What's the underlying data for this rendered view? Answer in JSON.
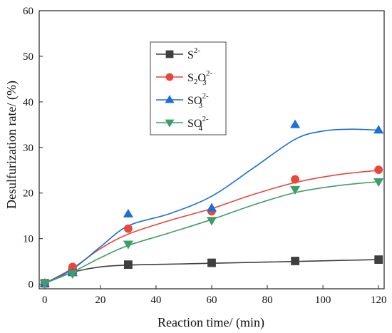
{
  "chart_data": {
    "type": "line",
    "x": [
      0,
      10,
      30,
      60,
      90,
      120
    ],
    "series": [
      {
        "name": "S2-",
        "label_base": "S",
        "label_sub": "",
        "label_sup": "2-",
        "marker": "square",
        "color": "#3f3f3f",
        "values": [
          0.2,
          2.9,
          4.3,
          4.7,
          5.1,
          5.4
        ],
        "curve": [
          [
            0,
            0.2
          ],
          [
            10,
            2.6
          ],
          [
            20,
            3.8
          ],
          [
            30,
            4.2
          ],
          [
            45,
            4.4
          ],
          [
            60,
            4.6
          ],
          [
            75,
            4.8
          ],
          [
            90,
            5.0
          ],
          [
            105,
            5.2
          ],
          [
            120,
            5.4
          ]
        ]
      },
      {
        "name": "S2O32-",
        "label_base": "S",
        "label_sub": "2",
        "label_mid": "O",
        "label_sub2": "3",
        "label_sup": "2-",
        "marker": "circle",
        "color": "#e8473b",
        "values": [
          0.2,
          3.8,
          12.2,
          16.0,
          23.0,
          25.1
        ],
        "curve": [
          [
            0,
            0.2
          ],
          [
            10,
            3.5
          ],
          [
            20,
            7.8
          ],
          [
            30,
            11.0
          ],
          [
            45,
            14.0
          ],
          [
            60,
            16.6
          ],
          [
            75,
            19.7
          ],
          [
            90,
            22.3
          ],
          [
            105,
            24.0
          ],
          [
            120,
            25.0
          ]
        ]
      },
      {
        "name": "SO32-",
        "label_base": "SO",
        "label_sub": "3",
        "label_sup": "2-",
        "marker": "triangle-up",
        "color": "#1b6fd6",
        "values": [
          0.2,
          2.5,
          15.4,
          16.7,
          35.0,
          33.8
        ],
        "curve": [
          [
            0,
            0.2
          ],
          [
            10,
            3.3
          ],
          [
            20,
            8.2
          ],
          [
            30,
            12.8
          ],
          [
            45,
            15.5
          ],
          [
            60,
            19.3
          ],
          [
            75,
            25.5
          ],
          [
            90,
            31.8
          ],
          [
            100,
            33.6
          ],
          [
            110,
            34.0
          ],
          [
            120,
            33.8
          ]
        ]
      },
      {
        "name": "SO42-",
        "label_base": "SO",
        "label_sub": "4",
        "label_sup": "2-",
        "marker": "triangle-down",
        "color": "#3e9e6a",
        "values": [
          0.2,
          2.3,
          8.8,
          14.0,
          20.8,
          22.5
        ],
        "curve": [
          [
            0,
            0.2
          ],
          [
            10,
            2.7
          ],
          [
            20,
            5.8
          ],
          [
            30,
            8.5
          ],
          [
            45,
            11.3
          ],
          [
            60,
            14.2
          ],
          [
            75,
            17.4
          ],
          [
            90,
            20.1
          ],
          [
            105,
            21.6
          ],
          [
            120,
            22.5
          ]
        ]
      }
    ],
    "xlabel": "Reaction time/ (min)",
    "ylabel": "Desulfurization rate/ (%)",
    "xlim": [
      -2,
      122
    ],
    "ylim": [
      -1,
      60
    ],
    "xticks": [
      0,
      20,
      40,
      60,
      80,
      100,
      120
    ],
    "yticks": [
      0,
      10,
      20,
      30,
      40,
      50,
      60
    ],
    "grid": false,
    "legend_position": "upper-left"
  }
}
